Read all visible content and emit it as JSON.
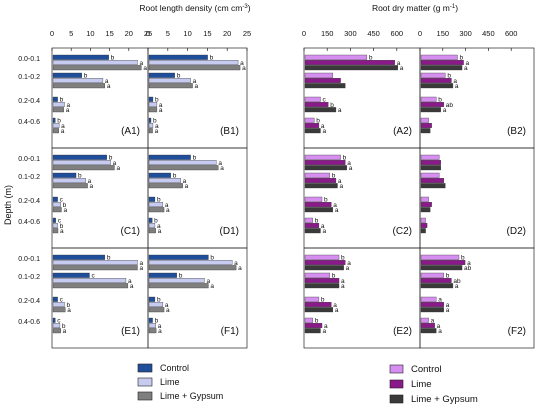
{
  "figure": {
    "title_left": "Root length density (cm cm",
    "title_left_sup": "-3",
    "title_right": "Root dry matter (g m",
    "title_right_sup": "-1",
    "depth_axis_label": "Depth (m)",
    "depths": [
      "0.0-0.1",
      "0.1-0.2",
      "0.2-0.4",
      "0.4-0.6"
    ],
    "legend_left": [
      "Control",
      "Lime",
      "Lime + Gypsum"
    ],
    "legend_right": [
      "Control",
      "Lime",
      "Lime + Gypsum"
    ],
    "colors": {
      "rld_control": "#1f4e9b",
      "rld_lime": "#c7cbf0",
      "rld_gypsum": "#7f7f7f",
      "rdm_control": "#d68ff0",
      "rdm_lime": "#8a1a8a",
      "rdm_gypsum": "#3a3a3a"
    }
  },
  "chart_data": [
    {
      "type": "bar",
      "orientation": "horizontal",
      "panel": "A1",
      "title": "Root length density (cm cm-3)",
      "ylabel": "Depth (m)",
      "xlim": [
        0,
        25
      ],
      "xticks": [
        0,
        5,
        10,
        15,
        20,
        25
      ],
      "categories": [
        "0.0-0.1",
        "0.1-0.2",
        "0.2-0.4",
        "0.4-0.6"
      ],
      "series": [
        {
          "name": "Control",
          "values": [
            14.5,
            7.5,
            1.2,
            0.6
          ],
          "letters": [
            "b",
            "b",
            "b",
            "b"
          ]
        },
        {
          "name": "Lime",
          "values": [
            22.0,
            13.0,
            3.0,
            1.6
          ],
          "letters": [
            "a",
            "a",
            "a",
            "a"
          ]
        },
        {
          "name": "Lime + Gypsum",
          "values": [
            23.0,
            13.5,
            2.8,
            1.5
          ],
          "letters": [
            "a",
            "a",
            "a",
            "a"
          ]
        }
      ]
    },
    {
      "type": "bar",
      "orientation": "horizontal",
      "panel": "B1",
      "xlim": [
        0,
        25
      ],
      "xticks": [
        0,
        5,
        10,
        15,
        20,
        25
      ],
      "categories": [
        "0.0-0.1",
        "0.1-0.2",
        "0.2-0.4",
        "0.4-0.6"
      ],
      "series": [
        {
          "name": "Control",
          "values": [
            14.8,
            6.5,
            1.0,
            0.5
          ],
          "letters": [
            "b",
            "b",
            "b",
            "b"
          ]
        },
        {
          "name": "Lime",
          "values": [
            22.5,
            10.5,
            2.0,
            1.0
          ],
          "letters": [
            "a",
            "a",
            "a",
            "a"
          ]
        },
        {
          "name": "Lime + Gypsum",
          "values": [
            23.0,
            11.0,
            2.0,
            0.9
          ],
          "letters": [
            "a",
            "a",
            "a",
            "a"
          ]
        }
      ]
    },
    {
      "type": "bar",
      "orientation": "horizontal",
      "panel": "C1",
      "xlim": [
        0,
        25
      ],
      "categories": [
        "0.0-0.1",
        "0.1-0.2",
        "0.2-0.4",
        "0.4-0.6"
      ],
      "series": [
        {
          "name": "Control",
          "values": [
            14.0,
            6.0,
            1.2,
            0.7
          ],
          "letters": [
            "b",
            "b",
            "c",
            "c"
          ]
        },
        {
          "name": "Lime",
          "values": [
            15.0,
            8.5,
            2.0,
            1.2
          ],
          "letters": [
            "a",
            "a",
            "b",
            "b"
          ]
        },
        {
          "name": "Lime + Gypsum",
          "values": [
            16.0,
            9.0,
            2.2,
            1.3
          ],
          "letters": [
            "a",
            "a",
            "a",
            "a"
          ]
        }
      ]
    },
    {
      "type": "bar",
      "orientation": "horizontal",
      "panel": "D1",
      "xlim": [
        0,
        25
      ],
      "categories": [
        "0.0-0.1",
        "0.1-0.2",
        "0.2-0.4",
        "0.4-0.6"
      ],
      "series": [
        {
          "name": "Control",
          "values": [
            10.5,
            5.5,
            1.5,
            0.8
          ],
          "letters": [
            "b",
            "b",
            "b",
            "b"
          ]
        },
        {
          "name": "Lime",
          "values": [
            17.0,
            8.0,
            3.5,
            1.5
          ],
          "letters": [
            "a",
            "a",
            "a",
            "a"
          ]
        },
        {
          "name": "Lime + Gypsum",
          "values": [
            17.5,
            8.5,
            3.8,
            1.7
          ],
          "letters": [
            "a",
            "a",
            "a",
            "a"
          ]
        }
      ]
    },
    {
      "type": "bar",
      "orientation": "horizontal",
      "panel": "E1",
      "xlim": [
        0,
        25
      ],
      "categories": [
        "0.0-0.1",
        "0.1-0.2",
        "0.2-0.4",
        "0.4-0.6"
      ],
      "series": [
        {
          "name": "Control",
          "values": [
            13.5,
            9.5,
            1.2,
            0.6
          ],
          "letters": [
            "b",
            "c",
            "c",
            "c"
          ]
        },
        {
          "name": "Lime",
          "values": [
            22.0,
            19.0,
            3.0,
            1.8
          ],
          "letters": [
            "a",
            "a",
            "b",
            "b"
          ]
        },
        {
          "name": "Lime + Gypsum",
          "values": [
            22.0,
            19.5,
            3.2,
            2.0
          ],
          "letters": [
            "a",
            "a",
            "a",
            "a"
          ]
        }
      ]
    },
    {
      "type": "bar",
      "orientation": "horizontal",
      "panel": "F1",
      "xlim": [
        0,
        25
      ],
      "categories": [
        "0.0-0.1",
        "0.1-0.2",
        "0.2-0.4",
        "0.4-0.6"
      ],
      "series": [
        {
          "name": "Control",
          "values": [
            15.0,
            7.0,
            1.5,
            0.9
          ],
          "letters": [
            "b",
            "b",
            "b",
            "b"
          ]
        },
        {
          "name": "Lime",
          "values": [
            21.0,
            14.0,
            3.5,
            1.7
          ],
          "letters": [
            "a",
            "a",
            "a",
            "a"
          ]
        },
        {
          "name": "Lime + Gypsum",
          "values": [
            22.0,
            15.0,
            3.8,
            1.8
          ],
          "letters": [
            "a",
            "a",
            "a",
            "a"
          ]
        }
      ]
    },
    {
      "type": "bar",
      "orientation": "horizontal",
      "panel": "A2",
      "title": "Root dry matter (g m-1)",
      "xlim": [
        0,
        750
      ],
      "xticks": [
        0,
        150,
        300,
        450,
        600
      ],
      "categories": [
        "0.0-0.1",
        "0.1-0.2",
        "0.2-0.4",
        "0.4-0.6"
      ],
      "series": [
        {
          "name": "Control",
          "values": [
            400,
            180,
            100,
            60
          ],
          "letters": [
            "b",
            "",
            "c",
            "b"
          ]
        },
        {
          "name": "Lime",
          "values": [
            580,
            230,
            150,
            90
          ],
          "letters": [
            "a",
            "",
            "b",
            "a"
          ]
        },
        {
          "name": "Lime + Gypsum",
          "values": [
            600,
            260,
            200,
            100
          ],
          "letters": [
            "a",
            "",
            "a",
            "a"
          ]
        }
      ]
    },
    {
      "type": "bar",
      "orientation": "horizontal",
      "panel": "B2",
      "xlim": [
        0,
        750
      ],
      "xticks": [
        0,
        150,
        300,
        450,
        600
      ],
      "categories": [
        "0.0-0.1",
        "0.1-0.2",
        "0.2-0.4",
        "0.4-0.6"
      ],
      "series": [
        {
          "name": "Control",
          "values": [
            240,
            160,
            100,
            50
          ],
          "letters": [
            "b",
            "b",
            "b",
            ""
          ]
        },
        {
          "name": "Lime",
          "values": [
            280,
            200,
            150,
            70
          ],
          "letters": [
            "a",
            "a",
            "ab",
            ""
          ]
        },
        {
          "name": "Lime + Gypsum",
          "values": [
            270,
            210,
            130,
            60
          ],
          "letters": [
            "a",
            "a",
            "a",
            ""
          ]
        }
      ]
    },
    {
      "type": "bar",
      "orientation": "horizontal",
      "panel": "C2",
      "xlim": [
        0,
        750
      ],
      "categories": [
        "0.0-0.1",
        "0.1-0.2",
        "0.2-0.4",
        "0.4-0.6"
      ],
      "series": [
        {
          "name": "Control",
          "values": [
            230,
            160,
            110,
            50
          ],
          "letters": [
            "b",
            "b",
            "b",
            "b"
          ]
        },
        {
          "name": "Lime",
          "values": [
            260,
            200,
            170,
            90
          ],
          "letters": [
            "a",
            "a",
            "a",
            "a"
          ]
        },
        {
          "name": "Lime + Gypsum",
          "values": [
            270,
            210,
            180,
            100
          ],
          "letters": [
            "a",
            "a",
            "a",
            "a"
          ]
        }
      ]
    },
    {
      "type": "bar",
      "orientation": "horizontal",
      "panel": "D2",
      "xlim": [
        0,
        750
      ],
      "categories": [
        "0.0-0.1",
        "0.1-0.2",
        "0.2-0.4",
        "0.4-0.6"
      ],
      "series": [
        {
          "name": "Control",
          "values": [
            120,
            120,
            50,
            30
          ],
          "letters": [
            "",
            "",
            "",
            ""
          ]
        },
        {
          "name": "Lime",
          "values": [
            130,
            150,
            70,
            40
          ],
          "letters": [
            "",
            "",
            "",
            ""
          ]
        },
        {
          "name": "Lime + Gypsum",
          "values": [
            130,
            160,
            60,
            30
          ],
          "letters": [
            "",
            "",
            "",
            ""
          ]
        }
      ]
    },
    {
      "type": "bar",
      "orientation": "horizontal",
      "panel": "E2",
      "xlim": [
        0,
        750
      ],
      "categories": [
        "0.0-0.1",
        "0.1-0.2",
        "0.2-0.4",
        "0.4-0.6"
      ],
      "series": [
        {
          "name": "Control",
          "values": [
            220,
            160,
            90,
            50
          ],
          "letters": [
            "b",
            "b",
            "b",
            "b"
          ]
        },
        {
          "name": "Lime",
          "values": [
            260,
            220,
            170,
            110
          ],
          "letters": [
            "a",
            "a",
            "a",
            "a"
          ]
        },
        {
          "name": "Lime + Gypsum",
          "values": [
            250,
            220,
            180,
            100
          ],
          "letters": [
            "a",
            "a",
            "a",
            "a"
          ]
        }
      ]
    },
    {
      "type": "bar",
      "orientation": "horizontal",
      "panel": "F2",
      "xlim": [
        0,
        750
      ],
      "categories": [
        "0.0-0.1",
        "0.1-0.2",
        "0.2-0.4",
        "0.4-0.6"
      ],
      "series": [
        {
          "name": "Control",
          "values": [
            250,
            150,
            100,
            50
          ],
          "letters": [
            "b",
            "b",
            "a",
            "a"
          ]
        },
        {
          "name": "Lime",
          "values": [
            290,
            200,
            150,
            90
          ],
          "letters": [
            "a",
            "ab",
            "a",
            "a"
          ]
        },
        {
          "name": "Lime + Gypsum",
          "values": [
            270,
            210,
            150,
            100
          ],
          "letters": [
            "ab",
            "a",
            "a",
            "a"
          ]
        }
      ]
    }
  ]
}
